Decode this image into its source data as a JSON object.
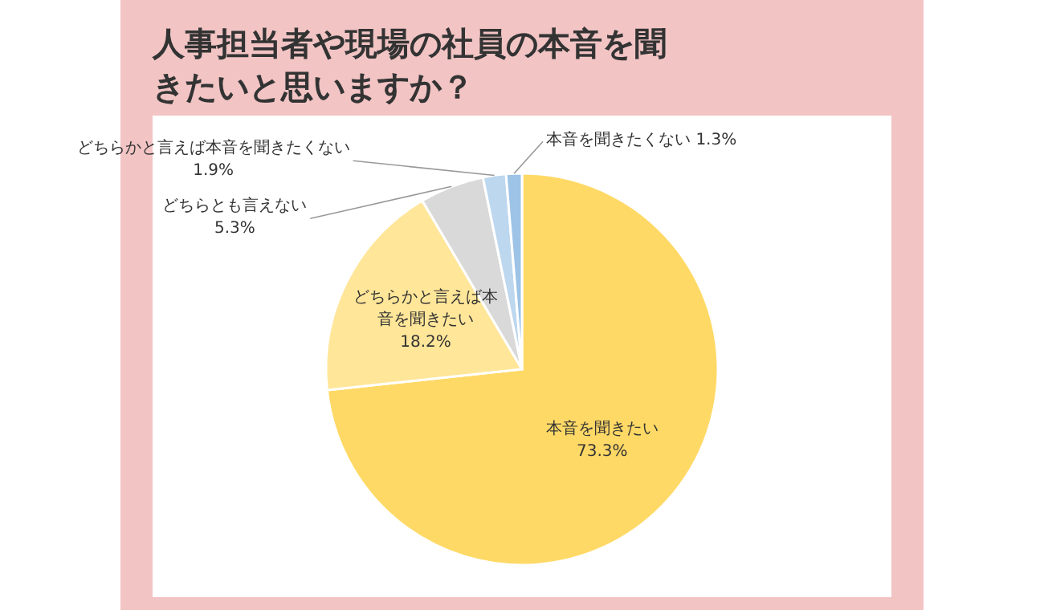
{
  "chart_data": {
    "type": "pie",
    "title": "人事担当者や現場の社員の本音を聞きたいと思いますか？",
    "categories": [
      "本音を聞きたい",
      "どちらかと言えば本音を聞きたい",
      "どちらとも言えない",
      "どちらかと言えば本音を聞きたくない",
      "本音を聞きたくない"
    ],
    "values": [
      73.3,
      18.2,
      5.3,
      1.9,
      1.3
    ],
    "value_labels": [
      "73.3%",
      "18.2%",
      "5.3%",
      "1.9%",
      "1.3%"
    ],
    "colors": [
      "#ffd966",
      "#ffe699",
      "#d9d9d9",
      "#bdd7ee",
      "#9dc3e6"
    ]
  }
}
